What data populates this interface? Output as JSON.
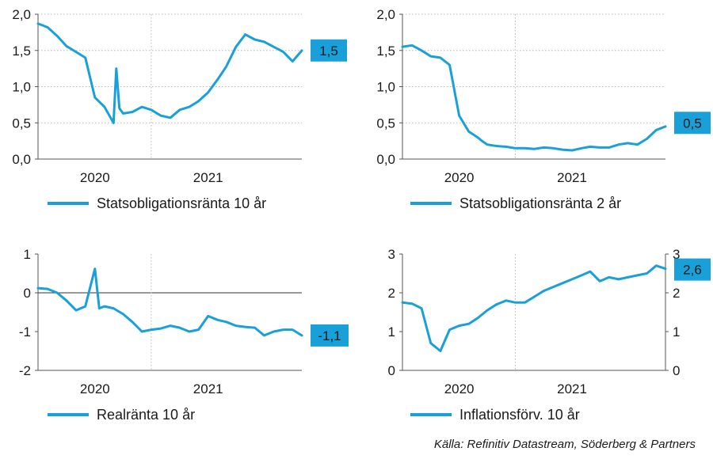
{
  "colors": {
    "line": "#1aa0d8",
    "badge": "#1aa0d8",
    "grid": "#b8b8b8",
    "axis": "#555555"
  },
  "source": "Källa: Refinitiv Datastream, Söderberg & Partners",
  "chart_data": [
    {
      "id": "statsobligation-10",
      "type": "line",
      "legend": "Statsobligationsränta 10 år",
      "latest_label": "1,5",
      "latest_value": 1.5,
      "ylim": [
        0,
        2
      ],
      "y_ticks": [
        "0,0",
        "0,5",
        "1,0",
        "1,5",
        "2,0"
      ],
      "y_tick_values": [
        0,
        0.5,
        1.0,
        1.5,
        2.0
      ],
      "xlim": [
        "2019-07-01",
        "2021-10-31"
      ],
      "x_tick_labels": [
        "2020",
        "2021"
      ],
      "x_tick_dates": [
        "2020-01-01",
        "2021-01-01"
      ],
      "x_year_separators": [
        "2020-07-01"
      ],
      "grid": "horizontal dotted",
      "x": [
        "2019-07-01",
        "2019-08-01",
        "2019-09-01",
        "2019-10-01",
        "2019-11-01",
        "2019-12-01",
        "2020-01-01",
        "2020-02-01",
        "2020-03-01",
        "2020-03-10",
        "2020-03-20",
        "2020-04-01",
        "2020-05-01",
        "2020-06-01",
        "2020-07-01",
        "2020-08-01",
        "2020-09-01",
        "2020-10-01",
        "2020-11-01",
        "2020-12-01",
        "2021-01-01",
        "2021-02-01",
        "2021-03-01",
        "2021-04-01",
        "2021-05-01",
        "2021-06-01",
        "2021-07-01",
        "2021-08-01",
        "2021-09-01",
        "2021-10-01",
        "2021-10-31"
      ],
      "values": [
        1.87,
        1.82,
        1.7,
        1.56,
        1.48,
        1.4,
        0.85,
        0.72,
        0.5,
        1.25,
        0.7,
        0.63,
        0.65,
        0.72,
        0.68,
        0.6,
        0.57,
        0.68,
        0.72,
        0.8,
        0.92,
        1.1,
        1.28,
        1.55,
        1.72,
        1.65,
        1.62,
        1.55,
        1.48,
        1.35,
        1.5
      ]
    },
    {
      "id": "statsobligation-2",
      "type": "line",
      "legend": "Statsobligationsränta 2 år",
      "latest_label": "0,5",
      "latest_value": 0.5,
      "ylim": [
        0,
        2
      ],
      "y_ticks": [
        "0,0",
        "0,5",
        "1,0",
        "1,5",
        "2,0"
      ],
      "y_tick_values": [
        0,
        0.5,
        1.0,
        1.5,
        2.0
      ],
      "xlim": [
        "2019-07-01",
        "2021-10-31"
      ],
      "x_tick_labels": [
        "2020",
        "2021"
      ],
      "x_tick_dates": [
        "2020-01-01",
        "2021-01-01"
      ],
      "x_year_separators": [
        "2020-07-01"
      ],
      "grid": "horizontal dotted",
      "x": [
        "2019-07-01",
        "2019-08-01",
        "2019-09-01",
        "2019-10-01",
        "2019-11-01",
        "2019-12-01",
        "2020-01-01",
        "2020-02-01",
        "2020-03-01",
        "2020-03-15",
        "2020-04-01",
        "2020-05-01",
        "2020-06-01",
        "2020-07-01",
        "2020-08-01",
        "2020-09-01",
        "2020-10-01",
        "2020-11-01",
        "2020-12-01",
        "2021-01-01",
        "2021-02-01",
        "2021-03-01",
        "2021-04-01",
        "2021-05-01",
        "2021-06-01",
        "2021-07-01",
        "2021-08-01",
        "2021-09-01",
        "2021-10-01",
        "2021-10-31"
      ],
      "values": [
        1.55,
        1.57,
        1.5,
        1.42,
        1.4,
        1.3,
        0.6,
        0.38,
        0.3,
        0.25,
        0.2,
        0.18,
        0.17,
        0.15,
        0.15,
        0.14,
        0.16,
        0.15,
        0.13,
        0.12,
        0.15,
        0.17,
        0.16,
        0.16,
        0.2,
        0.22,
        0.2,
        0.28,
        0.4,
        0.45
      ]
    },
    {
      "id": "realranta-10",
      "type": "line",
      "legend": "Realränta 10 år",
      "latest_label": "-1,1",
      "latest_value": -1.1,
      "ylim": [
        -2,
        1
      ],
      "y_ticks": [
        "-2",
        "-1",
        "0",
        "1"
      ],
      "y_tick_values": [
        -2,
        -1,
        0,
        1
      ],
      "xlim": [
        "2019-07-01",
        "2021-10-31"
      ],
      "x_tick_labels": [
        "2020",
        "2021"
      ],
      "x_tick_dates": [
        "2020-01-01",
        "2021-01-01"
      ],
      "x_year_separators": [
        "2020-07-01"
      ],
      "grid": "zero line",
      "x": [
        "2019-07-01",
        "2019-08-01",
        "2019-09-01",
        "2019-10-01",
        "2019-11-01",
        "2019-12-01",
        "2020-01-01",
        "2020-01-15",
        "2020-02-01",
        "2020-03-01",
        "2020-04-01",
        "2020-05-01",
        "2020-06-01",
        "2020-07-01",
        "2020-08-01",
        "2020-09-01",
        "2020-10-01",
        "2020-11-01",
        "2020-12-01",
        "2021-01-01",
        "2021-02-01",
        "2021-03-01",
        "2021-04-01",
        "2021-05-01",
        "2021-06-01",
        "2021-07-01",
        "2021-08-01",
        "2021-09-01",
        "2021-10-01",
        "2021-10-31"
      ],
      "values": [
        0.12,
        0.1,
        0.0,
        -0.2,
        -0.45,
        -0.35,
        0.62,
        -0.4,
        -0.35,
        -0.4,
        -0.55,
        -0.75,
        -1.0,
        -0.95,
        -0.92,
        -0.85,
        -0.9,
        -1.0,
        -0.95,
        -0.6,
        -0.7,
        -0.75,
        -0.85,
        -0.88,
        -0.9,
        -1.1,
        -1.0,
        -0.95,
        -0.95,
        -1.1
      ]
    },
    {
      "id": "inflationsforv-10",
      "type": "line",
      "legend": "Inflationsförv. 10 år",
      "latest_label": "2,6",
      "latest_value": 2.6,
      "ylim": [
        0,
        3
      ],
      "y_ticks": [
        "0",
        "1",
        "2",
        "3"
      ],
      "y_tick_values": [
        0,
        1,
        2,
        3
      ],
      "xlim": [
        "2019-07-01",
        "2021-10-31"
      ],
      "x_tick_labels": [
        "2020",
        "2021"
      ],
      "x_tick_dates": [
        "2020-01-01",
        "2021-01-01"
      ],
      "x_year_separators": [
        "2020-07-01"
      ],
      "grid": "none",
      "dual_y_axis": true,
      "x": [
        "2019-07-01",
        "2019-08-01",
        "2019-09-01",
        "2019-10-01",
        "2019-11-01",
        "2019-12-01",
        "2020-01-01",
        "2020-02-01",
        "2020-03-01",
        "2020-04-01",
        "2020-05-01",
        "2020-06-01",
        "2020-07-01",
        "2020-08-01",
        "2020-09-01",
        "2020-10-01",
        "2020-11-01",
        "2020-12-01",
        "2021-01-01",
        "2021-02-01",
        "2021-03-01",
        "2021-04-01",
        "2021-05-01",
        "2021-06-01",
        "2021-07-01",
        "2021-08-01",
        "2021-09-01",
        "2021-10-01",
        "2021-10-31"
      ],
      "values": [
        1.75,
        1.72,
        1.6,
        0.7,
        0.5,
        1.05,
        1.15,
        1.2,
        1.35,
        1.55,
        1.7,
        1.8,
        1.75,
        1.75,
        1.9,
        2.05,
        2.15,
        2.25,
        2.35,
        2.45,
        2.55,
        2.3,
        2.4,
        2.35,
        2.4,
        2.45,
        2.5,
        2.7,
        2.62
      ]
    }
  ]
}
